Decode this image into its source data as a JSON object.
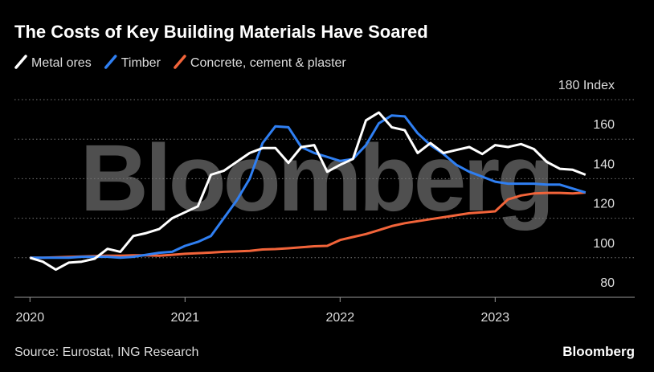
{
  "chart_data": {
    "type": "line",
    "title": "The Costs of Key Building Materials Have Soared",
    "watermark": "Bloomberg",
    "source": "Source: Eurostat, ING Research",
    "logo": "Bloomberg",
    "x": [
      2020,
      2020.083,
      2020.167,
      2020.25,
      2020.333,
      2020.417,
      2020.5,
      2020.583,
      2020.667,
      2020.75,
      2020.833,
      2020.917,
      2021,
      2021.083,
      2021.167,
      2021.25,
      2021.333,
      2021.417,
      2021.5,
      2021.583,
      2021.667,
      2021.75,
      2021.833,
      2021.917,
      2022,
      2022.083,
      2022.167,
      2022.25,
      2022.333,
      2022.417,
      2022.5,
      2022.583,
      2022.667,
      2022.75,
      2022.833,
      2022.917,
      2023,
      2023.083,
      2023.167,
      2023.25,
      2023.333,
      2023.417,
      2023.5,
      2023.583
    ],
    "series": [
      {
        "name": "Metal ores",
        "color": "#ffffff",
        "values": [
          100,
          98,
          94,
          97.5,
          98,
          99.5,
          104.5,
          103,
          111,
          112.5,
          114.5,
          120,
          123,
          126,
          142,
          144,
          148.5,
          153,
          155.5,
          155.5,
          148,
          156,
          157,
          143.5,
          147,
          150,
          169.5,
          173.5,
          166,
          164.5,
          153,
          158,
          153,
          154.5,
          156,
          152.5,
          157,
          156,
          157.5,
          155,
          148.5,
          145,
          144.5,
          142
        ]
      },
      {
        "name": "Timber",
        "color": "#2f7ff2",
        "values": [
          100,
          100,
          100,
          100,
          100.5,
          100.5,
          100.5,
          100,
          100.5,
          101.5,
          102.5,
          103,
          106,
          108,
          111,
          120,
          129,
          140,
          158,
          166.5,
          166,
          156,
          153,
          151,
          149,
          150,
          157,
          168,
          172,
          171.5,
          163,
          157,
          152.5,
          147,
          143.5,
          141,
          138.5,
          137.5,
          137.5,
          137.5,
          137,
          137,
          135,
          133
        ]
      },
      {
        "name": "Concrete, cement & plaster",
        "color": "#f2643a",
        "values": [
          100,
          100,
          100.2,
          100.4,
          100.6,
          100.8,
          101,
          101,
          101.2,
          101.2,
          101,
          101.5,
          102,
          102.3,
          102.6,
          103,
          103.2,
          103.5,
          104.2,
          104.4,
          104.8,
          105.3,
          105.8,
          106,
          109,
          110.5,
          112,
          114,
          116,
          117.5,
          118.5,
          119.5,
          120.5,
          121.5,
          122.5,
          123,
          123.5,
          129.5,
          131.5,
          132.5,
          132.8,
          132.8,
          132.5,
          133
        ]
      }
    ],
    "xlim": [
      2019.9,
      2023.9
    ],
    "xticks": [
      2020,
      2021,
      2022,
      2023
    ],
    "ylim": [
      80,
      180
    ],
    "yticks": [
      80,
      100,
      120,
      140,
      160,
      {
        "value": 180,
        "label": "180 Index"
      }
    ],
    "grid": true
  }
}
